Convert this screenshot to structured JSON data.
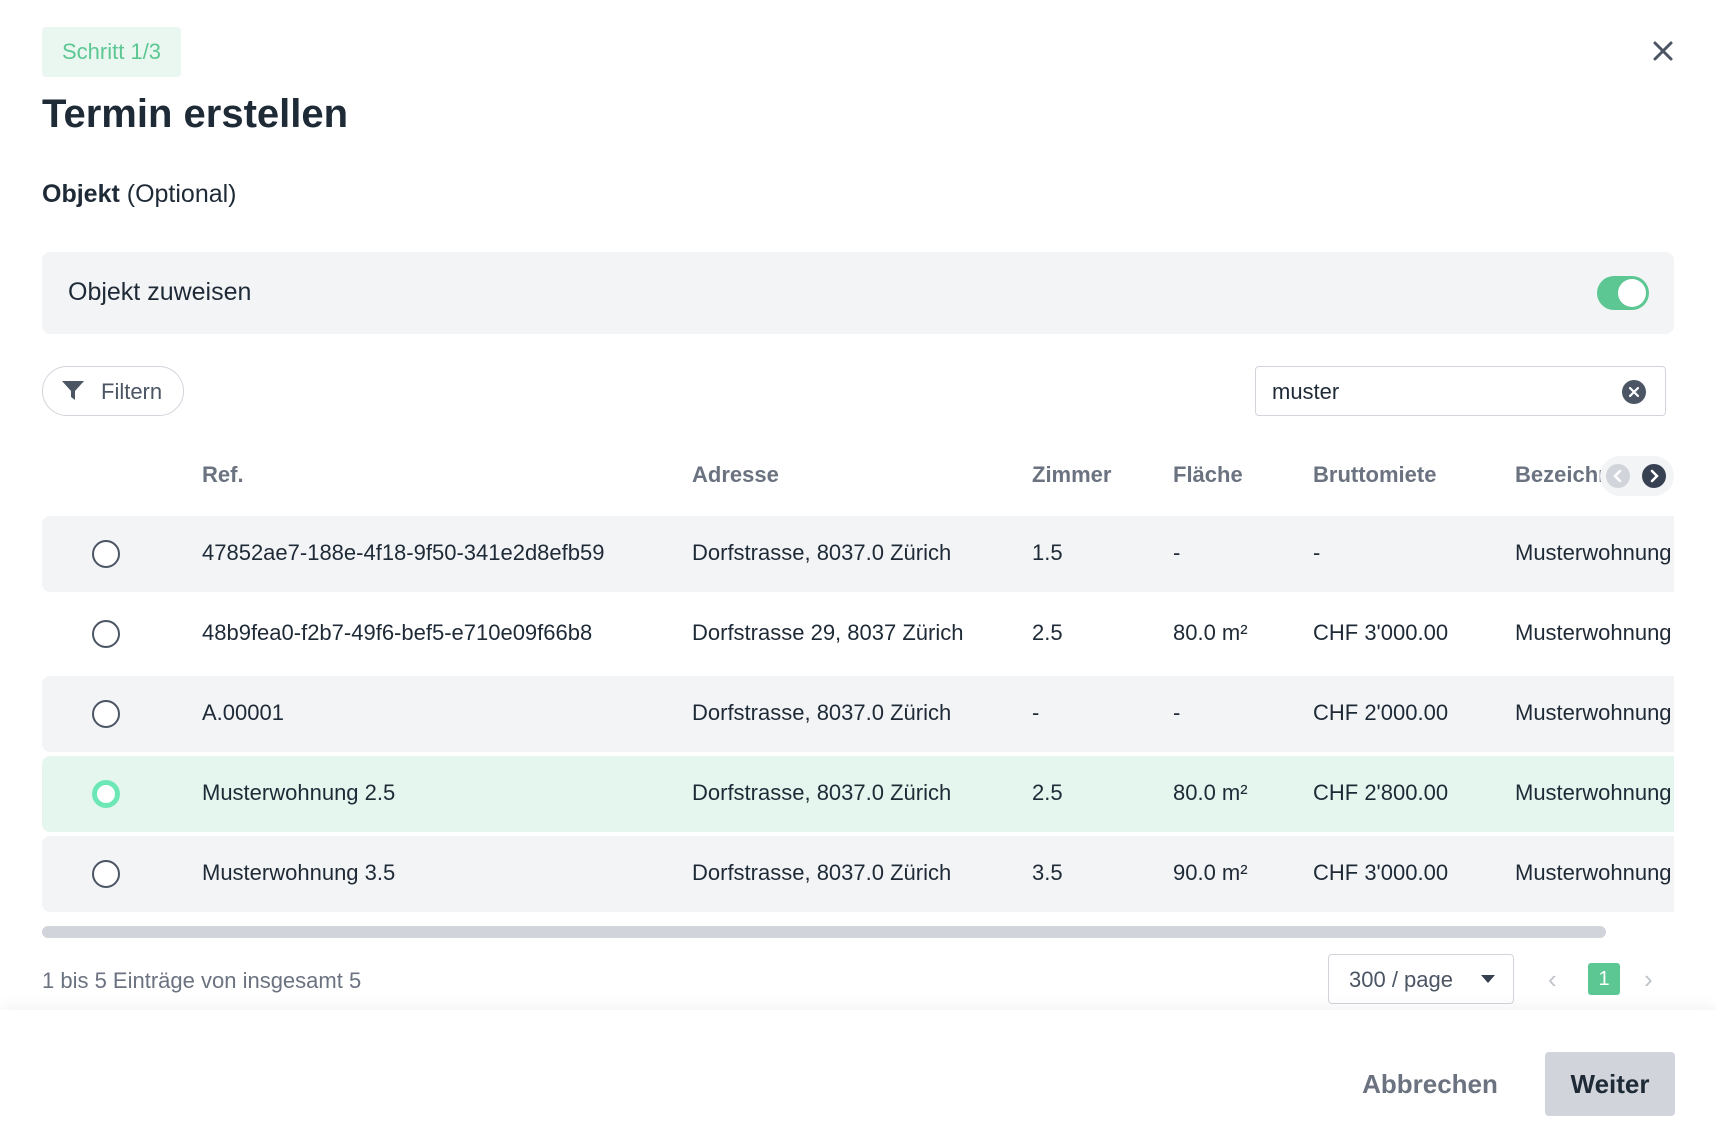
{
  "step_badge": "Schritt 1/3",
  "title": "Termin erstellen",
  "section": {
    "label_bold": "Objekt",
    "label_suffix": " (Optional)"
  },
  "assign": {
    "label": "Objekt zuweisen",
    "toggle_on": true
  },
  "filter": {
    "label": "Filtern"
  },
  "search": {
    "value": "muster"
  },
  "table": {
    "columns": [
      "Ref.",
      "Adresse",
      "Zimmer",
      "Fläche",
      "Bruttomiete",
      "Bezeichı"
    ],
    "rows": [
      {
        "ref": "47852ae7-188e-4f18-9f50-341e2d8efb59",
        "adresse": "Dorfstrasse, 8037.0 Zürich",
        "zimmer": "1.5",
        "flaeche": "-",
        "bruttomiete": "-",
        "bezeichnung": "Musterwohnung",
        "selected": false
      },
      {
        "ref": "48b9fea0-f2b7-49f6-bef5-e710e09f66b8",
        "adresse": "Dorfstrasse 29, 8037 Zürich",
        "zimmer": "2.5",
        "flaeche": "80.0 m²",
        "bruttomiete": "CHF 3'000.00",
        "bezeichnung": "Musterwohnung",
        "selected": false
      },
      {
        "ref": "A.00001",
        "adresse": "Dorfstrasse, 8037.0 Zürich",
        "zimmer": "-",
        "flaeche": "-",
        "bruttomiete": "CHF 2'000.00",
        "bezeichnung": "Musterwohnung",
        "selected": false
      },
      {
        "ref": "Musterwohnung 2.5",
        "adresse": "Dorfstrasse, 8037.0 Zürich",
        "zimmer": "2.5",
        "flaeche": "80.0 m²",
        "bruttomiete": "CHF 2'800.00",
        "bezeichnung": "Musterwohnung",
        "selected": true
      },
      {
        "ref": "Musterwohnung 3.5",
        "adresse": "Dorfstrasse, 8037.0 Zürich",
        "zimmer": "3.5",
        "flaeche": "90.0 m²",
        "bruttomiete": "CHF 3'000.00",
        "bezeichnung": "Musterwohnung",
        "selected": false
      }
    ]
  },
  "pagination": {
    "summary": "1 bis 5 Einträge von insgesamt 5",
    "page_size": "300 / page",
    "prev": "‹",
    "current_page": "1",
    "next": "›"
  },
  "footer": {
    "cancel_label": "Abbrechen",
    "next_label": "Weiter"
  },
  "colors": {
    "accent": "#5cc792",
    "selected_row": "#e5f6ee",
    "row_alt": "#f3f4f6"
  },
  "icons": {
    "close": "close-icon",
    "filter": "filter-funnel-icon",
    "clear": "clear-search-icon",
    "scroll_left": "chevron-left-icon",
    "scroll_right": "chevron-right-icon"
  }
}
